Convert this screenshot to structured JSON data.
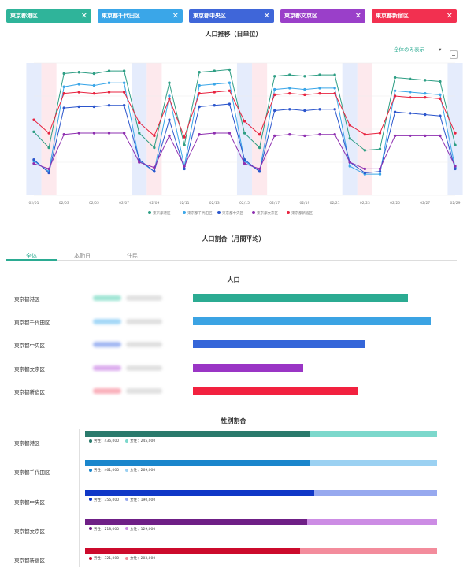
{
  "tags": [
    {
      "label": "東京都港区",
      "color": "#2fb49a"
    },
    {
      "label": "東京都千代田区",
      "color": "#3aa6e8"
    },
    {
      "label": "東京都中央区",
      "color": "#3f66d9"
    },
    {
      "label": "東京都文京区",
      "color": "#9a3fc9"
    },
    {
      "label": "東京都新宿区",
      "color": "#f23050"
    }
  ],
  "tag_close": "✕",
  "trend": {
    "title": "人口推移（日単位）",
    "dropdown": "全体のみ表示",
    "dropdown_arrow": "▾"
  },
  "chart_data": {
    "type": "line",
    "title": "人口推移（日単位）",
    "x": [
      "02/01",
      "02/02",
      "02/03",
      "02/04",
      "02/05",
      "02/06",
      "02/07",
      "02/08",
      "02/09",
      "02/10",
      "02/11",
      "02/12",
      "02/13",
      "02/14",
      "02/15",
      "02/16",
      "02/17",
      "02/18",
      "02/19",
      "02/20",
      "02/21",
      "02/22",
      "02/23",
      "02/24",
      "02/25",
      "02/26",
      "02/27",
      "02/28",
      "02/29"
    ],
    "xticks": [
      "02/01",
      "02/03",
      "02/05",
      "02/07",
      "02/09",
      "02/11",
      "02/13",
      "02/15",
      "02/17",
      "02/19",
      "02/21",
      "02/23",
      "02/25",
      "02/27",
      "02/29"
    ],
    "ylim": [
      0,
      100
    ],
    "grid": true,
    "legend": "bottom",
    "series": [
      {
        "name": "東京都港区",
        "color": "#2e9e84",
        "values": [
          48,
          36,
          92,
          93,
          92,
          94,
          94,
          47,
          36,
          85,
          38,
          93,
          94,
          95,
          47,
          36,
          90,
          91,
          90,
          91,
          91,
          43,
          34,
          35,
          89,
          88,
          87,
          86,
          38
        ]
      },
      {
        "name": "東京都千代田区",
        "color": "#3aa6e8",
        "values": [
          26,
          18,
          82,
          84,
          83,
          85,
          85,
          26,
          18,
          75,
          22,
          83,
          84,
          85,
          26,
          18,
          80,
          81,
          80,
          81,
          81,
          22,
          16,
          16,
          79,
          78,
          77,
          76,
          21
        ]
      },
      {
        "name": "東京都中央区",
        "color": "#2b55cc",
        "values": [
          27,
          17,
          66,
          67,
          67,
          68,
          68,
          27,
          18,
          57,
          20,
          67,
          68,
          69,
          27,
          18,
          64,
          65,
          64,
          65,
          65,
          25,
          17,
          18,
          63,
          62,
          61,
          60,
          20
        ]
      },
      {
        "name": "東京都文京区",
        "color": "#8e2fb0",
        "values": [
          24,
          20,
          46,
          47,
          47,
          47,
          47,
          25,
          21,
          45,
          22,
          46,
          47,
          47,
          24,
          20,
          45,
          46,
          45,
          46,
          46,
          25,
          20,
          20,
          45,
          45,
          45,
          45,
          22
        ]
      },
      {
        "name": "東京都新宿区",
        "color": "#e8233f",
        "values": [
          57,
          47,
          77,
          78,
          77,
          78,
          78,
          55,
          45,
          73,
          44,
          77,
          78,
          79,
          56,
          46,
          76,
          77,
          76,
          77,
          77,
          53,
          46,
          47,
          75,
          74,
          74,
          73,
          47
        ]
      }
    ]
  },
  "ratio": {
    "title": "人口割合（月間平均）",
    "tabs": [
      "全体",
      "本勤日",
      "住民"
    ],
    "pop_title": "人口",
    "rows": [
      {
        "label": "東京都港区",
        "value": 0.86,
        "color": "#2bab92"
      },
      {
        "label": "東京都千代田区",
        "value": 0.95,
        "color": "#3ba3e3"
      },
      {
        "label": "東京都中央区",
        "value": 0.69,
        "color": "#3566d9"
      },
      {
        "label": "東京都文京区",
        "value": 0.44,
        "color": "#9a35c5"
      },
      {
        "label": "東京都新宿区",
        "value": 0.66,
        "color": "#f2213f"
      }
    ],
    "blur_colors": [
      "#4fcfb0",
      "#5bb8f0",
      "#5c80e8",
      "#c06ae0",
      "#f56d82"
    ]
  },
  "gender": {
    "title": "性別割合",
    "rows": [
      {
        "label": "東京都港区",
        "male": 0.64,
        "male_color": "#2a7a6c",
        "female_color": "#7cd8cc",
        "male_text": "男性：436,000",
        "female_text": "女性：245,000"
      },
      {
        "label": "東京都千代田区",
        "male": 0.64,
        "male_color": "#1a86cc",
        "female_color": "#9bd1f2",
        "male_text": "男性：461,000",
        "female_text": "女性：269,000"
      },
      {
        "label": "東京都中央区",
        "male": 0.65,
        "male_color": "#1038c7",
        "female_color": "#97a9ef",
        "male_text": "男性：356,000",
        "female_text": "女性：190,000"
      },
      {
        "label": "東京都文京区",
        "male": 0.63,
        "male_color": "#6f1f86",
        "female_color": "#cc8ce4",
        "male_text": "男性：218,000",
        "female_text": "女性：129,000"
      },
      {
        "label": "東京都新宿区",
        "male": 0.61,
        "male_color": "#cc0a2c",
        "female_color": "#f38c9c",
        "male_text": "男性：321,000",
        "female_text": "女性：203,000"
      }
    ]
  }
}
